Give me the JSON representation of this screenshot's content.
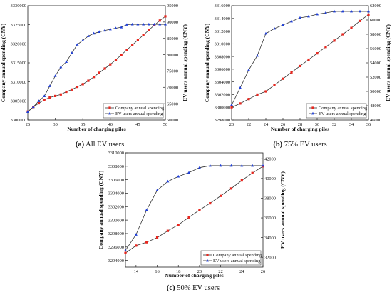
{
  "chart_data": [
    {
      "type": "line",
      "caption_tag": "(a)",
      "caption_text": "All EV users",
      "xlabel": "Number of charging piles",
      "ylabel_left": "Company annual spending (CNY)",
      "ylabel_right": "EV users annual spending (CNY)",
      "xlim": [
        25,
        50
      ],
      "ylim_left": [
        3300000,
        3330000
      ],
      "ylim_right": [
        60000,
        95000
      ],
      "xticks": [
        25,
        30,
        35,
        40,
        45,
        50
      ],
      "yticks_left": [
        3300000,
        3305000,
        3310000,
        3315000,
        3320000,
        3325000,
        3330000
      ],
      "yticks_right": [
        60000,
        65000,
        70000,
        75000,
        80000,
        85000,
        90000,
        95000
      ],
      "grid": false,
      "legend_position": "lower-right",
      "series": [
        {
          "name": "Company annual spending",
          "axis": "left",
          "color": "#e8261e",
          "marker": "square",
          "x": [
            25,
            26,
            27,
            28,
            29,
            30,
            31,
            32,
            33,
            34,
            35,
            36,
            37,
            38,
            39,
            40,
            41,
            42,
            43,
            44,
            45,
            46,
            47,
            48,
            49,
            50
          ],
          "y": [
            3302200,
            3303400,
            3304400,
            3305300,
            3305900,
            3306300,
            3306700,
            3307400,
            3308000,
            3308700,
            3309400,
            3310300,
            3311300,
            3312400,
            3313500,
            3314600,
            3315800,
            3317100,
            3318400,
            3319700,
            3321000,
            3322300,
            3323600,
            3324900,
            3326100,
            3327200
          ]
        },
        {
          "name": "EV users annual spending",
          "axis": "right",
          "color": "#1f3fd6",
          "marker": "triangle",
          "x": [
            25,
            26,
            27,
            28,
            29,
            30,
            31,
            32,
            33,
            34,
            35,
            36,
            37,
            38,
            39,
            40,
            41,
            42,
            43,
            44,
            45,
            46,
            47,
            48,
            49,
            50
          ],
          "y": [
            62500,
            64000,
            65800,
            67300,
            70400,
            73500,
            76200,
            77800,
            80500,
            83100,
            84400,
            85700,
            86500,
            87000,
            87400,
            87800,
            88100,
            88400,
            89200,
            89300,
            89300,
            89300,
            89300,
            89300,
            89300,
            89300
          ]
        }
      ]
    },
    {
      "type": "line",
      "caption_tag": "(b)",
      "caption_text": "75% EV users",
      "xlabel": "Number of charging piles",
      "ylabel_left": "Company annual spending (CNY)",
      "ylabel_right": "EV users annual spending (CNY)",
      "xlim": [
        20,
        36
      ],
      "ylim_left": [
        3298000,
        3316000
      ],
      "ylim_right": [
        46000,
        62000
      ],
      "xticks": [
        20,
        22,
        24,
        26,
        28,
        30,
        32,
        34,
        36
      ],
      "yticks_left": [
        3298000,
        3300000,
        3302000,
        3304000,
        3306000,
        3308000,
        3310000,
        3312000,
        3314000,
        3316000
      ],
      "yticks_right": [
        46000,
        48000,
        50000,
        52000,
        54000,
        56000,
        58000,
        60000,
        62000
      ],
      "grid": false,
      "legend_position": "lower-right",
      "series": [
        {
          "name": "Company annual spending",
          "axis": "left",
          "color": "#e8261e",
          "marker": "square",
          "x": [
            20,
            21,
            22,
            23,
            24,
            25,
            26,
            27,
            28,
            29,
            30,
            31,
            32,
            33,
            34,
            35,
            36
          ],
          "y": [
            3300000,
            3300600,
            3301300,
            3302000,
            3302500,
            3303500,
            3304500,
            3305500,
            3306500,
            3307500,
            3308500,
            3309500,
            3310500,
            3311500,
            3312500,
            3313600,
            3314600
          ]
        },
        {
          "name": "EV users annual spending",
          "axis": "right",
          "color": "#1f3fd6",
          "marker": "triangle",
          "x": [
            20,
            21,
            22,
            23,
            24,
            25,
            26,
            27,
            28,
            29,
            30,
            31,
            32,
            33,
            34,
            35,
            36
          ],
          "y": [
            48100,
            50500,
            53000,
            55000,
            58100,
            58800,
            59300,
            59800,
            60300,
            60500,
            60800,
            61000,
            61200,
            61200,
            61200,
            61200,
            61200
          ]
        }
      ]
    },
    {
      "type": "line",
      "caption_tag": "(c)",
      "caption_text": "50% EV users",
      "xlabel": "Number of charging piles",
      "ylabel_left": "Company annual spending (CNY)",
      "ylabel_right": "EV users annual spending (CNY)",
      "xlim": [
        13,
        26
      ],
      "ylim_left": [
        3293000,
        3310000
      ],
      "ylim_right": [
        31000,
        42600
      ],
      "xticks": [
        14,
        16,
        18,
        20,
        22,
        24,
        26
      ],
      "yticks_left": [
        3294000,
        3296000,
        3298000,
        3300000,
        3302000,
        3304000,
        3306000,
        3308000,
        3310000
      ],
      "yticks_right": [
        32000,
        34000,
        36000,
        38000,
        40000,
        42000
      ],
      "grid": false,
      "legend_position": "lower-right",
      "series": [
        {
          "name": "Company annual spending",
          "axis": "left",
          "color": "#e8261e",
          "marker": "square",
          "x": [
            13,
            14,
            15,
            16,
            17,
            18,
            19,
            20,
            21,
            22,
            23,
            24,
            25,
            26
          ],
          "y": [
            3295100,
            3296200,
            3296700,
            3297400,
            3298400,
            3299300,
            3300400,
            3301500,
            3302500,
            3303600,
            3304700,
            3305900,
            3307000,
            3308000
          ]
        },
        {
          "name": "EV users annual spending",
          "axis": "right",
          "color": "#1f3fd6",
          "marker": "triangle",
          "x": [
            13,
            14,
            15,
            16,
            17,
            18,
            19,
            20,
            21,
            22,
            23,
            24,
            25,
            26
          ],
          "y": [
            32700,
            34300,
            36800,
            38800,
            39700,
            40200,
            40600,
            41100,
            41300,
            41300,
            41300,
            41300,
            41300,
            41300
          ]
        }
      ]
    }
  ]
}
